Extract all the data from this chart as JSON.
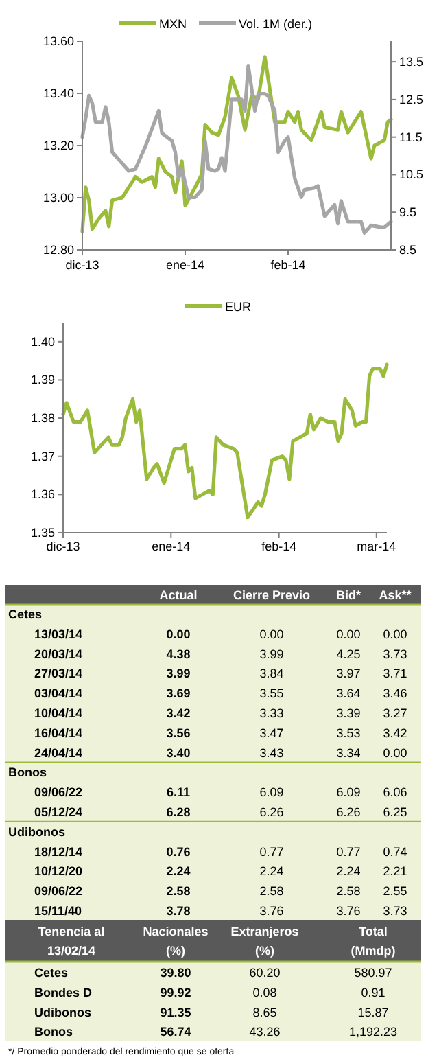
{
  "chart_data": [
    {
      "type": "line",
      "legend": "top",
      "grid": false,
      "xlim": [
        "2013-12-01",
        "2014-03-04"
      ],
      "xticks": [
        {
          "value": "2013-12-01",
          "label": "dic-13"
        },
        {
          "value": "2014-01-01",
          "label": "ene-14"
        },
        {
          "value": "2014-02-01",
          "label": "feb-14"
        }
      ],
      "ylim": [
        12.8,
        13.6
      ],
      "yticks": [
        {
          "value": 12.8,
          "label": "12.80"
        },
        {
          "value": 13.0,
          "label": "13.00"
        },
        {
          "value": 13.2,
          "label": "13.20"
        },
        {
          "value": 13.4,
          "label": "13.40"
        },
        {
          "value": 13.6,
          "label": "13.60"
        }
      ],
      "y2lim": [
        8.5,
        14.05
      ],
      "y2ticks": [
        8.5,
        9.5,
        10.5,
        11.5,
        12.5,
        13.5
      ],
      "series": [
        {
          "name": "MXN",
          "color": "#9bbb3b",
          "x": [
            "2013-12-01",
            "2013-12-02",
            "2013-12-03",
            "2013-12-04",
            "2013-12-06",
            "2013-12-08",
            "2013-12-09",
            "2013-12-10",
            "2013-12-13",
            "2013-12-15",
            "2013-12-17",
            "2013-12-19",
            "2013-12-22",
            "2013-12-23",
            "2013-12-24",
            "2013-12-26",
            "2013-12-28",
            "2013-12-29",
            "2013-12-31",
            "2014-01-01",
            "2014-01-04",
            "2014-01-06",
            "2014-01-07",
            "2014-01-09",
            "2014-01-11",
            "2014-01-13",
            "2014-01-15",
            "2014-01-17",
            "2014-01-19",
            "2014-01-21",
            "2014-01-23",
            "2014-01-25",
            "2014-01-28",
            "2014-01-31",
            "2014-02-01",
            "2014-02-03",
            "2014-02-04",
            "2014-02-05",
            "2014-02-08",
            "2014-02-11",
            "2014-02-12",
            "2014-02-16",
            "2014-02-17",
            "2014-02-19",
            "2014-02-23",
            "2014-02-26",
            "2014-02-27",
            "2014-03-02",
            "2014-03-03",
            "2014-03-04"
          ],
          "values": [
            12.87,
            13.04,
            12.99,
            12.88,
            12.92,
            12.95,
            12.89,
            12.99,
            13.0,
            13.04,
            13.08,
            13.06,
            13.08,
            13.04,
            13.15,
            13.1,
            13.08,
            13.02,
            13.14,
            12.97,
            13.04,
            13.09,
            13.28,
            13.25,
            13.24,
            13.31,
            13.46,
            13.39,
            13.26,
            13.39,
            13.38,
            13.54,
            13.29,
            13.29,
            13.33,
            13.29,
            13.33,
            13.26,
            13.22,
            13.33,
            13.27,
            13.26,
            13.33,
            13.25,
            13.33,
            13.15,
            13.2,
            13.22,
            13.29,
            13.3
          ]
        },
        {
          "name": "Vol. 1M (der.)",
          "color": "#a6a6a6",
          "axis": "y2",
          "x": [
            "2013-12-01",
            "2013-12-02",
            "2013-12-03",
            "2013-12-04",
            "2013-12-05",
            "2013-12-07",
            "2013-12-08",
            "2013-12-09",
            "2013-12-10",
            "2013-12-13",
            "2013-12-15",
            "2013-12-17",
            "2013-12-20",
            "2013-12-24",
            "2013-12-25",
            "2013-12-28",
            "2013-12-29",
            "2013-12-30",
            "2013-12-31",
            "2014-01-02",
            "2014-01-04",
            "2014-01-06",
            "2014-01-07",
            "2014-01-08",
            "2014-01-10",
            "2014-01-11",
            "2014-01-12",
            "2014-01-13",
            "2014-01-15",
            "2014-01-18",
            "2014-01-19",
            "2014-01-20",
            "2014-01-22",
            "2014-01-23",
            "2014-01-25",
            "2014-01-26",
            "2014-01-28",
            "2014-01-29",
            "2014-01-31",
            "2014-02-01",
            "2014-02-03",
            "2014-02-05",
            "2014-02-06",
            "2014-02-09",
            "2014-02-10",
            "2014-02-12",
            "2014-02-15",
            "2014-02-16",
            "2014-02-17",
            "2014-02-19",
            "2014-02-23",
            "2014-02-24",
            "2014-02-26",
            "2014-03-01",
            "2014-03-02",
            "2014-03-04"
          ],
          "values": [
            11.5,
            12.0,
            12.6,
            12.4,
            11.9,
            11.9,
            12.3,
            11.9,
            11.1,
            10.8,
            10.6,
            10.65,
            11.25,
            12.2,
            11.6,
            11.4,
            11.1,
            10.4,
            10.65,
            9.9,
            9.9,
            10.1,
            11.4,
            10.65,
            10.6,
            10.65,
            10.95,
            10.6,
            12.5,
            12.5,
            12.2,
            13.4,
            12.2,
            12.65,
            12.65,
            12.6,
            12.2,
            11.1,
            11.4,
            11.5,
            10.4,
            9.9,
            10.1,
            10.15,
            10.2,
            9.4,
            9.7,
            9.2,
            9.8,
            9.25,
            9.25,
            8.95,
            9.15,
            9.1,
            9.1,
            9.25
          ]
        }
      ]
    },
    {
      "type": "line",
      "legend": "top",
      "grid": false,
      "xlim": [
        "2013-12-01",
        "2014-03-04"
      ],
      "xticks": [
        {
          "value": "2013-12-01",
          "label": "dic-13"
        },
        {
          "value": "2014-01-01",
          "label": "ene-14"
        },
        {
          "value": "2014-02-01",
          "label": "feb-14"
        },
        {
          "value": "2014-03-01",
          "label": "mar-14"
        }
      ],
      "ylim": [
        1.35,
        1.405
      ],
      "yticks": [
        {
          "value": 1.35,
          "label": "1.35"
        },
        {
          "value": 1.36,
          "label": "1.36"
        },
        {
          "value": 1.37,
          "label": "1.37"
        },
        {
          "value": 1.38,
          "label": "1.38"
        },
        {
          "value": 1.39,
          "label": "1.39"
        },
        {
          "value": 1.4,
          "label": "1.40"
        }
      ],
      "series": [
        {
          "name": "EUR",
          "color": "#9bbb3b",
          "x": [
            "2013-12-01",
            "2013-12-02",
            "2013-12-04",
            "2013-12-06",
            "2013-12-08",
            "2013-12-10",
            "2013-12-14",
            "2013-12-15",
            "2013-12-17",
            "2013-12-18",
            "2013-12-19",
            "2013-12-21",
            "2013-12-22",
            "2013-12-23",
            "2013-12-25",
            "2013-12-27",
            "2013-12-28",
            "2013-12-30",
            "2014-01-02",
            "2014-01-04",
            "2014-01-05",
            "2014-01-06",
            "2014-01-07",
            "2014-01-08",
            "2014-01-12",
            "2014-01-13",
            "2014-01-14",
            "2014-01-16",
            "2014-01-19",
            "2014-01-20",
            "2014-01-23",
            "2014-01-26",
            "2014-01-27",
            "2014-01-28",
            "2014-01-30",
            "2014-02-02",
            "2014-02-03",
            "2014-02-04",
            "2014-02-05",
            "2014-02-09",
            "2014-02-10",
            "2014-02-11",
            "2014-02-13",
            "2014-02-15",
            "2014-02-17",
            "2014-02-18",
            "2014-02-19",
            "2014-02-20",
            "2014-02-22",
            "2014-02-23",
            "2014-02-25",
            "2014-02-26",
            "2014-02-27",
            "2014-02-28",
            "2014-03-02",
            "2014-03-03",
            "2014-03-04"
          ],
          "values": [
            1.381,
            1.384,
            1.379,
            1.379,
            1.382,
            1.371,
            1.375,
            1.373,
            1.373,
            1.375,
            1.38,
            1.385,
            1.379,
            1.382,
            1.364,
            1.367,
            1.368,
            1.363,
            1.372,
            1.372,
            1.373,
            1.366,
            1.367,
            1.359,
            1.361,
            1.36,
            1.375,
            1.373,
            1.372,
            1.371,
            1.354,
            1.358,
            1.357,
            1.36,
            1.369,
            1.37,
            1.369,
            1.364,
            1.374,
            1.376,
            1.381,
            1.377,
            1.38,
            1.379,
            1.379,
            1.374,
            1.376,
            1.385,
            1.382,
            1.378,
            1.379,
            1.379,
            1.391,
            1.393,
            1.393,
            1.391,
            1.394
          ]
        }
      ]
    },
    {
      "type": "other",
      "categories": [
        "Actual",
        "Cierre Previo",
        "Bid*",
        "Ask**"
      ],
      "y_categories": [
        "Cetes",
        "13/03/14",
        "20/03/14",
        "27/03/14",
        "03/04/14",
        "10/04/14",
        "16/04/14",
        "24/04/14",
        "Bonos",
        "09/06/22",
        "05/12/24",
        "Udibonos",
        "18/12/14",
        "10/12/20",
        "09/06/22",
        "15/11/40"
      ],
      "cell_labels": [
        null,
        [
          "0.00",
          "0.00",
          "0.00",
          "0.00"
        ],
        [
          "4.38",
          "3.99",
          "4.25",
          "3.73"
        ],
        [
          "3.99",
          "3.84",
          "3.97",
          "3.71"
        ],
        [
          "3.69",
          "3.55",
          "3.64",
          "3.46"
        ],
        [
          "3.42",
          "3.33",
          "3.39",
          "3.27"
        ],
        [
          "3.56",
          "3.47",
          "3.53",
          "3.42"
        ],
        [
          "3.40",
          "3.43",
          "3.34",
          "0.00"
        ],
        null,
        [
          "6.11",
          "6.09",
          "6.09",
          "6.06"
        ],
        [
          "6.28",
          "6.26",
          "6.26",
          "6.25"
        ],
        null,
        [
          "0.76",
          "0.77",
          "0.77",
          "0.74"
        ],
        [
          "2.24",
          "2.24",
          "2.24",
          "2.21"
        ],
        [
          "2.58",
          "2.58",
          "2.58",
          "2.55"
        ],
        [
          "3.78",
          "3.76",
          "3.76",
          "3.73"
        ]
      ]
    },
    {
      "type": "other",
      "ylabel": "Tenencia al\n13/02/14",
      "categories": [
        "Nacionales\n(%)",
        "Extranjeros\n(%)",
        "Total\n(Mmdp)"
      ],
      "y_categories": [
        "Cetes",
        "Bondes D",
        "Udibonos",
        "Bonos"
      ],
      "cell_labels": [
        [
          "39.80",
          "60.20",
          "580.97"
        ],
        [
          "99.92",
          "0.08",
          "0.91"
        ],
        [
          "91.35",
          "8.65",
          "15.87"
        ],
        [
          "56.74",
          "43.26",
          "1,192.23"
        ]
      ],
      "annotations": [
        "*/ Promedio ponderado del rendimiento que se oferta"
      ]
    }
  ]
}
